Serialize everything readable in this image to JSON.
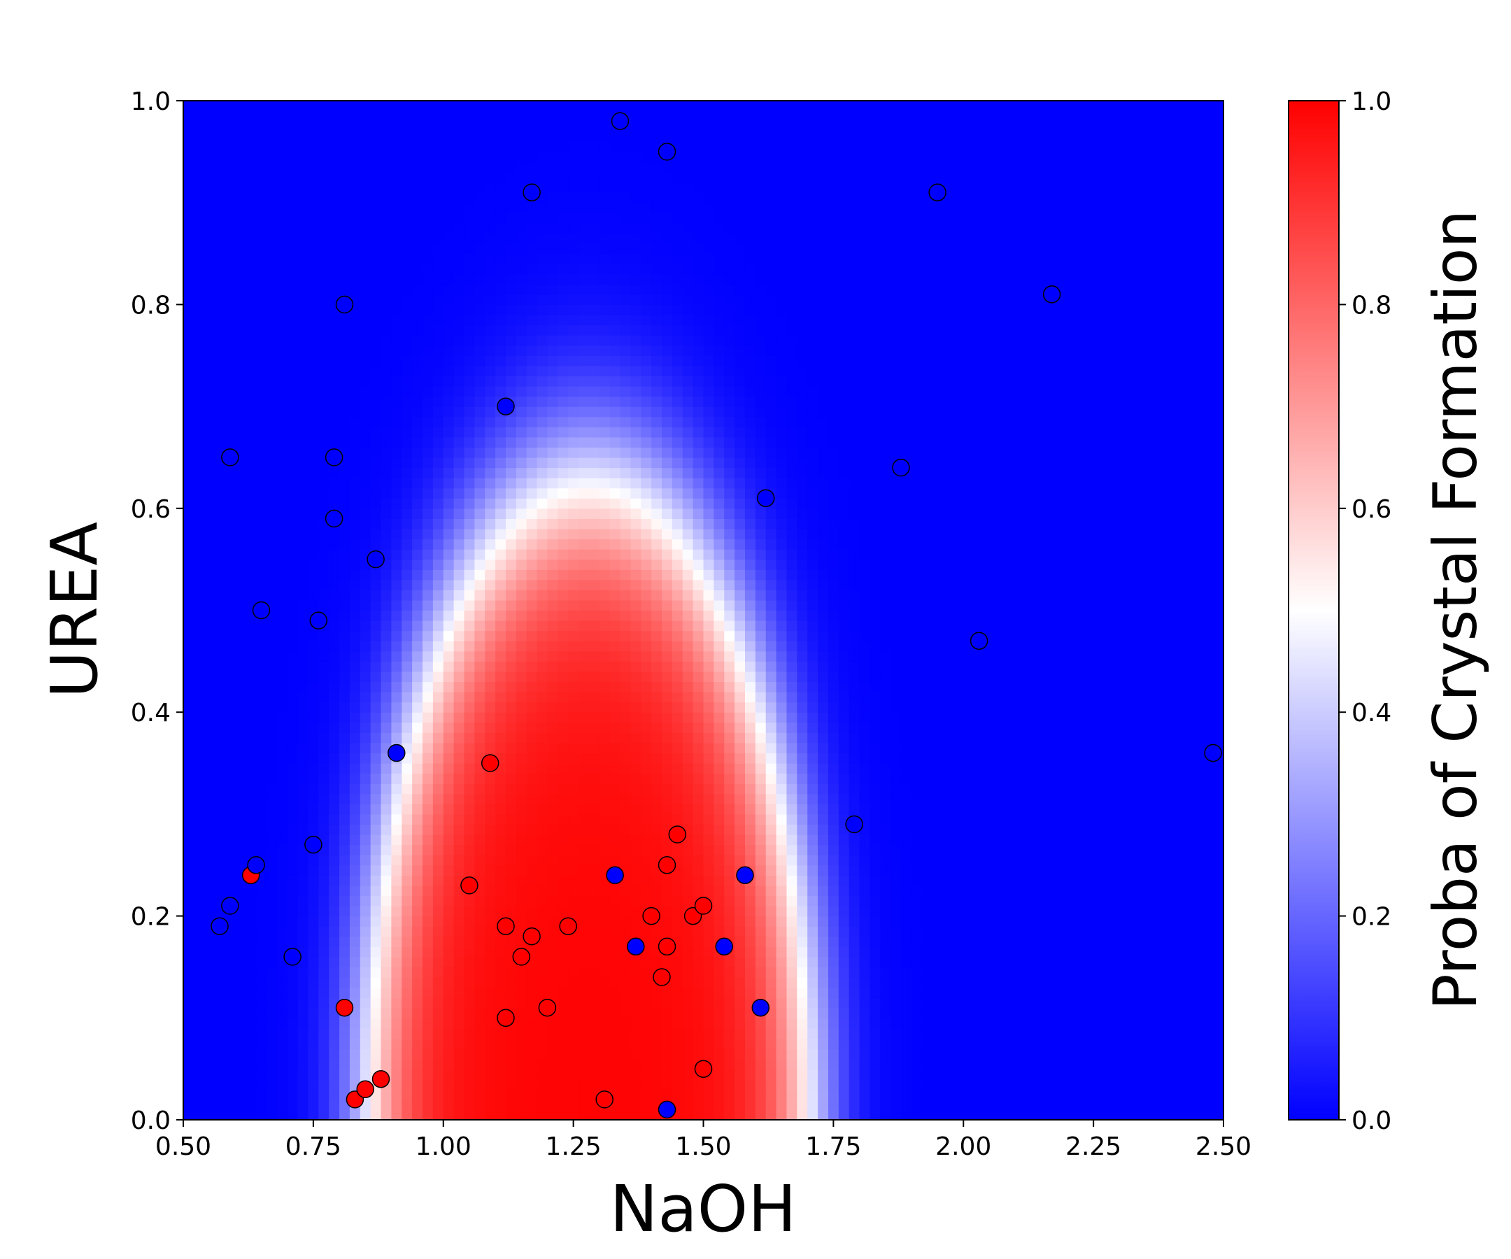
{
  "chart_data": {
    "type": "scatter",
    "title": "",
    "xlabel": "NaOH",
    "ylabel": "UREA",
    "xlim": [
      0.5,
      2.5
    ],
    "ylim": [
      0.0,
      1.0
    ],
    "xticks": [
      "0.50",
      "0.75",
      "1.00",
      "1.25",
      "1.50",
      "1.75",
      "2.00",
      "2.25",
      "2.50"
    ],
    "yticks": [
      "0.0",
      "0.2",
      "0.4",
      "0.6",
      "0.8",
      "1.0"
    ],
    "grid": false,
    "background": {
      "type": "heatmap",
      "description_colormap": "bwr",
      "low_color": "#0000ff",
      "mid_color": "#ffffff",
      "high_color": "#ff0000"
    },
    "colorbar": {
      "label": "Proba of Crystal Formation",
      "ticks": [
        "0.0",
        "0.2",
        "0.4",
        "0.6",
        "0.8",
        "1.0"
      ],
      "range": [
        0.0,
        1.0
      ]
    },
    "series": [
      {
        "color": "#ff0000",
        "points": [
          [
            0.63,
            0.24
          ],
          [
            0.81,
            0.11
          ],
          [
            0.83,
            0.02
          ],
          [
            0.85,
            0.03
          ],
          [
            0.88,
            0.04
          ],
          [
            1.05,
            0.23
          ],
          [
            1.09,
            0.35
          ],
          [
            1.12,
            0.19
          ],
          [
            1.12,
            0.1
          ],
          [
            1.15,
            0.16
          ],
          [
            1.17,
            0.18
          ],
          [
            1.2,
            0.11
          ],
          [
            1.24,
            0.19
          ],
          [
            1.31,
            0.02
          ],
          [
            1.4,
            0.2
          ],
          [
            1.42,
            0.14
          ],
          [
            1.43,
            0.25
          ],
          [
            1.43,
            0.17
          ],
          [
            1.45,
            0.28
          ],
          [
            1.48,
            0.2
          ],
          [
            1.5,
            0.21
          ],
          [
            1.5,
            0.05
          ]
        ]
      },
      {
        "color": "#0000ff",
        "points": [
          [
            0.57,
            0.19
          ],
          [
            0.59,
            0.21
          ],
          [
            0.59,
            0.65
          ],
          [
            0.64,
            0.25
          ],
          [
            0.65,
            0.5
          ],
          [
            0.71,
            0.16
          ],
          [
            0.75,
            0.27
          ],
          [
            0.76,
            0.49
          ],
          [
            0.79,
            0.65
          ],
          [
            0.79,
            0.59
          ],
          [
            0.81,
            0.8
          ],
          [
            0.87,
            0.55
          ],
          [
            0.91,
            0.36
          ],
          [
            1.12,
            0.7
          ],
          [
            1.17,
            0.91
          ],
          [
            1.33,
            0.24
          ],
          [
            1.34,
            0.98
          ],
          [
            1.37,
            0.17
          ],
          [
            1.43,
            0.95
          ],
          [
            1.43,
            0.01
          ],
          [
            1.54,
            0.17
          ],
          [
            1.58,
            0.24
          ],
          [
            1.61,
            0.11
          ],
          [
            1.62,
            0.61
          ],
          [
            1.79,
            0.29
          ],
          [
            1.88,
            0.64
          ],
          [
            1.95,
            0.91
          ],
          [
            2.03,
            0.47
          ],
          [
            2.17,
            0.81
          ],
          [
            2.48,
            0.36
          ]
        ]
      }
    ]
  }
}
